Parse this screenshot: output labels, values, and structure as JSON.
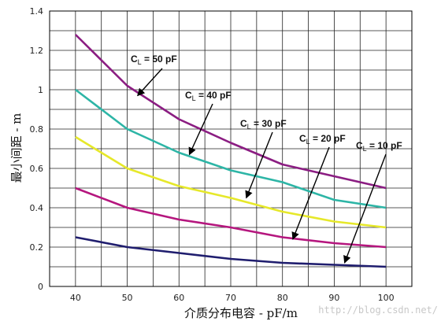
{
  "chart_data": {
    "type": "line",
    "xlabel": "介质分布电容 - pF/m",
    "ylabel": "最小间距 - m",
    "xlim": [
      35,
      105
    ],
    "ylim": [
      0,
      1.4
    ],
    "xticks": [
      "40",
      "50",
      "60",
      "70",
      "80",
      "90",
      "100"
    ],
    "yticks": [
      "0",
      "0.2",
      "0.4",
      "0.6",
      "0.8",
      "1",
      "1.2",
      "1.4"
    ],
    "x": [
      40,
      50,
      60,
      70,
      80,
      90,
      100
    ],
    "grid": true,
    "series": [
      {
        "name": "CL = 50 pF",
        "color": "#8b1d82",
        "values": [
          1.28,
          1.02,
          0.85,
          0.73,
          0.62,
          0.56,
          0.5
        ]
      },
      {
        "name": "CL = 40 pF",
        "color": "#2db5a6",
        "values": [
          1.0,
          0.8,
          0.68,
          0.59,
          0.53,
          0.44,
          0.4
        ]
      },
      {
        "name": "CL = 30 pF",
        "color": "#e6e82a",
        "values": [
          0.76,
          0.6,
          0.51,
          0.45,
          0.38,
          0.33,
          0.3
        ]
      },
      {
        "name": "CL = 20 pF",
        "color": "#b5167e",
        "values": [
          0.5,
          0.4,
          0.34,
          0.3,
          0.25,
          0.22,
          0.2
        ]
      },
      {
        "name": "CL = 10 pF",
        "color": "#1f1d6e",
        "values": [
          0.25,
          0.2,
          0.17,
          0.14,
          0.12,
          0.11,
          0.1
        ]
      }
    ],
    "annotations": [
      {
        "C": "C",
        "sub": "L",
        "rest": " = 50 pF",
        "arrow_to": [
          52,
          0.97
        ]
      },
      {
        "C": "C",
        "sub": "L",
        "rest": " = 40 pF",
        "arrow_to": [
          62,
          0.67
        ]
      },
      {
        "C": "C",
        "sub": "L",
        "rest": " = 30 pF",
        "arrow_to": [
          73,
          0.45
        ]
      },
      {
        "C": "C",
        "sub": "L",
        "rest": " = 20 pF",
        "arrow_to": [
          82,
          0.24
        ]
      },
      {
        "C": "C",
        "sub": "L",
        "rest": " = 10 pF",
        "arrow_to": [
          92,
          0.12
        ]
      }
    ]
  },
  "watermark": "http://blog.csdn.net/"
}
